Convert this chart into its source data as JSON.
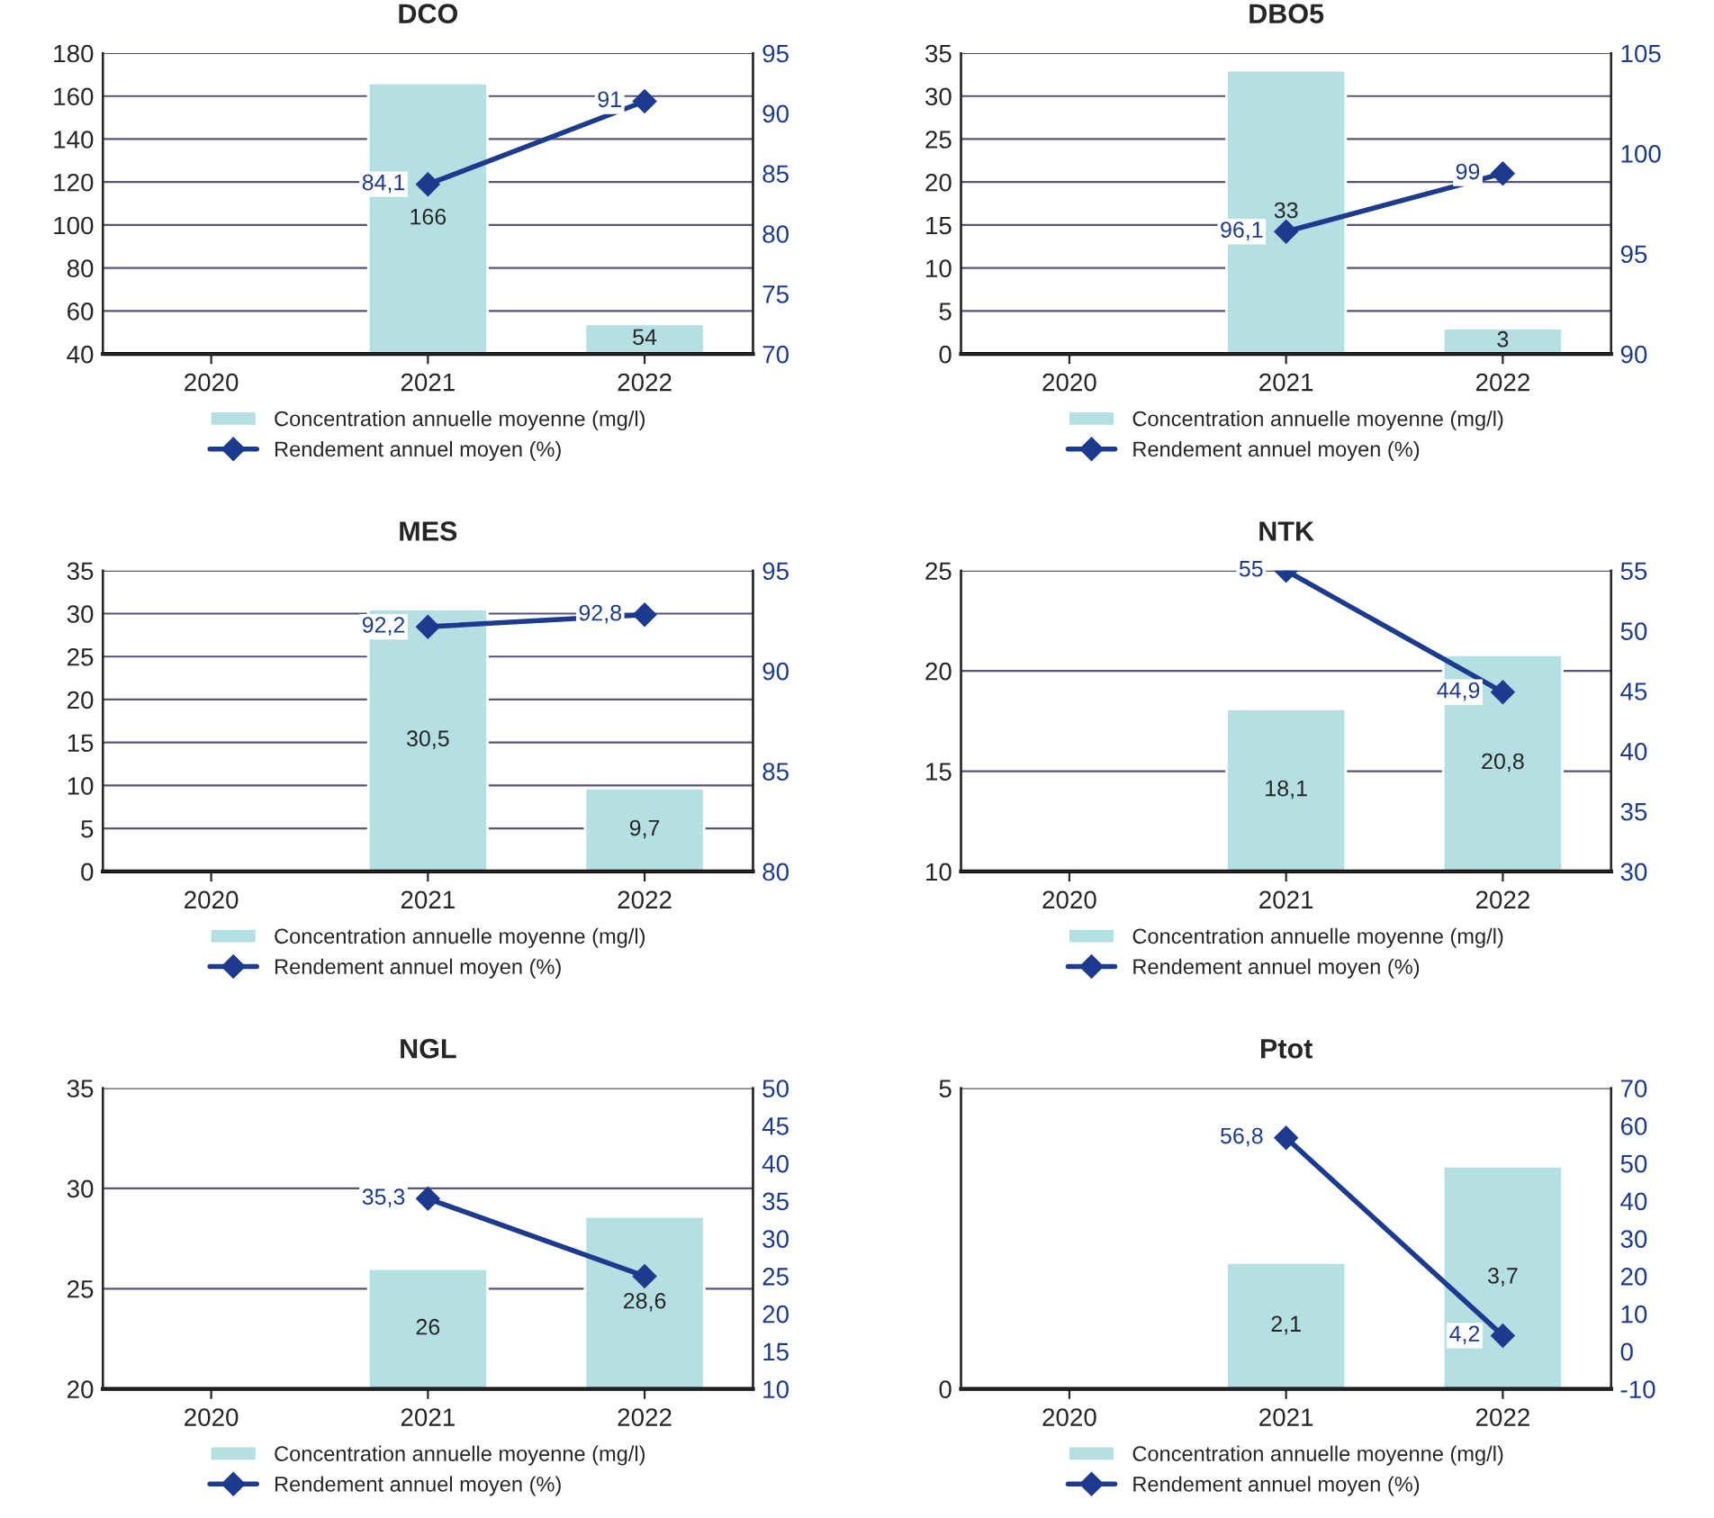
{
  "chart_data": [
    {
      "type": "bar",
      "title": "DCO",
      "categories": [
        "2020",
        "2021",
        "2022"
      ],
      "ylim": [
        40,
        180
      ],
      "yticks": [
        40,
        60,
        80,
        100,
        120,
        140,
        160,
        180
      ],
      "y2lim": [
        70,
        95
      ],
      "y2ticks": [
        70,
        75,
        80,
        85,
        90,
        95
      ],
      "grid": "y",
      "legend": "bottom",
      "series": [
        {
          "name": "Concentration annuelle moyenne (mg/l)",
          "color": "#b4dfe3",
          "values": [
            null,
            166,
            54
          ],
          "value_labels": [
            null,
            "166",
            "54"
          ]
        },
        {
          "name": "Rendement annuel moyen (%)",
          "type": "line",
          "axis": "y2",
          "color": "#1c3a8e",
          "marker": "diamond",
          "values": [
            null,
            84.1,
            91
          ],
          "value_labels": [
            null,
            "84,1",
            "91"
          ]
        }
      ]
    },
    {
      "type": "bar",
      "title": "DBO5",
      "categories": [
        "2020",
        "2021",
        "2022"
      ],
      "ylim": [
        0,
        35
      ],
      "yticks": [
        0,
        5,
        10,
        15,
        20,
        25,
        30,
        35
      ],
      "y2lim": [
        90,
        105
      ],
      "y2ticks": [
        90,
        95,
        100,
        105
      ],
      "grid": "y",
      "legend": "bottom",
      "series": [
        {
          "name": "Concentration annuelle moyenne (mg/l)",
          "color": "#b4dfe3",
          "values": [
            null,
            33,
            3
          ],
          "value_labels": [
            null,
            "33",
            "3"
          ]
        },
        {
          "name": "Rendement annuel moyen (%)",
          "type": "line",
          "axis": "y2",
          "color": "#1c3a8e",
          "marker": "diamond",
          "values": [
            null,
            96.1,
            99
          ],
          "value_labels": [
            null,
            "96,1",
            "99"
          ]
        }
      ]
    },
    {
      "type": "bar",
      "title": "MES",
      "categories": [
        "2020",
        "2021",
        "2022"
      ],
      "ylim": [
        0,
        35
      ],
      "yticks": [
        0,
        5,
        10,
        15,
        20,
        25,
        30,
        35
      ],
      "y2lim": [
        80,
        95
      ],
      "y2ticks": [
        80,
        85,
        90,
        95
      ],
      "grid": "y",
      "legend": "bottom",
      "series": [
        {
          "name": "Concentration annuelle moyenne (mg/l)",
          "color": "#b4dfe3",
          "values": [
            null,
            30.5,
            9.7
          ],
          "value_labels": [
            null,
            "30,5",
            "9,7"
          ]
        },
        {
          "name": "Rendement annuel moyen (%)",
          "type": "line",
          "axis": "y2",
          "color": "#1c3a8e",
          "marker": "diamond",
          "values": [
            null,
            92.2,
            92.8
          ],
          "value_labels": [
            null,
            "92,2",
            "92,8"
          ]
        }
      ]
    },
    {
      "type": "bar",
      "title": "NTK",
      "categories": [
        "2020",
        "2021",
        "2022"
      ],
      "ylim": [
        10,
        25
      ],
      "yticks": [
        10,
        15,
        20,
        25
      ],
      "y2lim": [
        30,
        55
      ],
      "y2ticks": [
        30,
        35,
        40,
        45,
        50,
        55
      ],
      "grid": "y",
      "legend": "bottom",
      "series": [
        {
          "name": "Concentration annuelle moyenne (mg/l)",
          "color": "#b4dfe3",
          "values": [
            null,
            18.1,
            20.8
          ],
          "value_labels": [
            null,
            "18,1",
            "20,8"
          ]
        },
        {
          "name": "Rendement annuel moyen (%)",
          "type": "line",
          "axis": "y2",
          "color": "#1c3a8e",
          "marker": "diamond",
          "values": [
            null,
            55,
            44.9
          ],
          "value_labels": [
            null,
            "55",
            "44,9"
          ]
        }
      ]
    },
    {
      "type": "bar",
      "title": "NGL",
      "categories": [
        "2020",
        "2021",
        "2022"
      ],
      "ylim": [
        20,
        35
      ],
      "yticks": [
        20,
        25,
        30,
        35
      ],
      "y2lim": [
        10,
        50
      ],
      "y2ticks": [
        10,
        15,
        20,
        25,
        30,
        35,
        40,
        45,
        50
      ],
      "grid": "y",
      "legend": "bottom",
      "series": [
        {
          "name": "Concentration annuelle moyenne (mg/l)",
          "color": "#b4dfe3",
          "values": [
            null,
            26,
            28.6
          ],
          "value_labels": [
            null,
            "26",
            "28,6"
          ]
        },
        {
          "name": "Rendement annuel moyen (%)",
          "type": "line",
          "axis": "y2",
          "color": "#1c3a8e",
          "marker": "diamond",
          "values": [
            null,
            35.3,
            25
          ],
          "value_labels": [
            null,
            "35,3",
            null
          ]
        }
      ]
    },
    {
      "type": "bar",
      "title": "Ptot",
      "categories": [
        "2020",
        "2021",
        "2022"
      ],
      "ylim": [
        0,
        5
      ],
      "yticks": [
        0,
        5
      ],
      "y2lim": [
        -10,
        70
      ],
      "y2ticks": [
        -10,
        0,
        10,
        20,
        30,
        40,
        50,
        60,
        70
      ],
      "grid": "y",
      "legend": "bottom",
      "series": [
        {
          "name": "Concentration annuelle moyenne (mg/l)",
          "color": "#b4dfe3",
          "values": [
            null,
            2.1,
            3.7
          ],
          "value_labels": [
            null,
            "2,1",
            "3,7"
          ]
        },
        {
          "name": "Rendement annuel moyen (%)",
          "type": "line",
          "axis": "y2",
          "color": "#1c3a8e",
          "marker": "diamond",
          "values": [
            null,
            56.8,
            4.2
          ],
          "value_labels": [
            null,
            "56,8",
            "4,2"
          ]
        }
      ]
    }
  ]
}
